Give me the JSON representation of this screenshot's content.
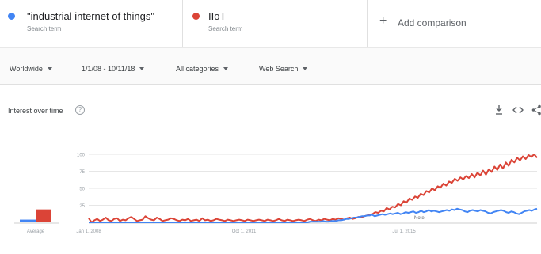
{
  "terms": [
    {
      "name": "\"industrial internet of things\"",
      "subtitle": "Search term",
      "color": "#4285f4"
    },
    {
      "name": "IIoT",
      "subtitle": "Search term",
      "color": "#db4437"
    }
  ],
  "add_comparison": {
    "icon": "plus-icon",
    "label": "Add comparison"
  },
  "filters": {
    "region": "Worldwide",
    "date_range": "1/1/08 - 10/11/18",
    "category": "All categories",
    "search_type": "Web Search"
  },
  "panel": {
    "title": "Interest over time",
    "help_icon": "?",
    "tools": [
      "download-icon",
      "embed-icon",
      "share-icon"
    ]
  },
  "chart_data": {
    "type": "line",
    "y_ticks": [
      25,
      50,
      75,
      100
    ],
    "ylim": [
      0,
      100
    ],
    "x_ticks": [
      "Jan 1, 2008",
      "Oct 1, 2011",
      "Jul 1, 2015"
    ],
    "note_label": "Note",
    "average": {
      "label": "Average",
      "values": [
        4,
        19
      ]
    },
    "series": [
      {
        "color": "#4285f4",
        "values": [
          0,
          0,
          0,
          0,
          0,
          0,
          0,
          0,
          0,
          0,
          0,
          0,
          0,
          0,
          0,
          0,
          0,
          0,
          0,
          0,
          0,
          0,
          0,
          0,
          0,
          0,
          0,
          0,
          0,
          0,
          0,
          0,
          0,
          0,
          0,
          0,
          0,
          0,
          0,
          0,
          0,
          0,
          0,
          0,
          0,
          0,
          0,
          0,
          0,
          0,
          0,
          0,
          0,
          0,
          0,
          0,
          0,
          0,
          0,
          0,
          0,
          0,
          0,
          0,
          0,
          0,
          0,
          0,
          0,
          0,
          0,
          0,
          0,
          0,
          0,
          0,
          0,
          0,
          0,
          0,
          0,
          0,
          0,
          0,
          0,
          0,
          1,
          1,
          1,
          1,
          1,
          2,
          1,
          1,
          2,
          2,
          2,
          3,
          3,
          4,
          5,
          5,
          6,
          7,
          7,
          8,
          9,
          9,
          10,
          10,
          11,
          9,
          10,
          11,
          12,
          11,
          12,
          13,
          12,
          13,
          14,
          12,
          13,
          15,
          14,
          15,
          16,
          14,
          15,
          17,
          15,
          16,
          18,
          16,
          17,
          16,
          15,
          16,
          17,
          18,
          17,
          19,
          18,
          20,
          19,
          18,
          16,
          15,
          17,
          18,
          17,
          16,
          18,
          17,
          16,
          14,
          13,
          15,
          16,
          17,
          18,
          17,
          15,
          14,
          16,
          15,
          13,
          12,
          14,
          16,
          17,
          18,
          17,
          19,
          20
        ]
      },
      {
        "color": "#db4437",
        "values": [
          6,
          0,
          3,
          5,
          2,
          4,
          7,
          3,
          2,
          5,
          6,
          2,
          4,
          3,
          6,
          8,
          5,
          2,
          3,
          4,
          9,
          6,
          4,
          3,
          7,
          5,
          2,
          3,
          4,
          6,
          5,
          3,
          2,
          4,
          3,
          5,
          2,
          3,
          4,
          2,
          6,
          3,
          4,
          2,
          3,
          5,
          4,
          3,
          2,
          4,
          3,
          2,
          3,
          4,
          3,
          2,
          4,
          3,
          2,
          3,
          4,
          3,
          2,
          4,
          3,
          2,
          3,
          5,
          3,
          2,
          4,
          3,
          2,
          3,
          4,
          3,
          2,
          4,
          5,
          3,
          2,
          4,
          3,
          5,
          4,
          3,
          5,
          4,
          6,
          5,
          4,
          6,
          7,
          5,
          6,
          8,
          7,
          9,
          10,
          11,
          12,
          15,
          14,
          17,
          16,
          21,
          19,
          23,
          22,
          27,
          25,
          31,
          29,
          35,
          33,
          38,
          36,
          42,
          40,
          46,
          44,
          50,
          47,
          53,
          51,
          57,
          54,
          60,
          58,
          64,
          61,
          66,
          63,
          68,
          65,
          71,
          66,
          73,
          69,
          76,
          70,
          78,
          74,
          82,
          77,
          85,
          79,
          88,
          83,
          92,
          88,
          95,
          91,
          97,
          93,
          99,
          96,
          100,
          95
        ]
      }
    ]
  }
}
